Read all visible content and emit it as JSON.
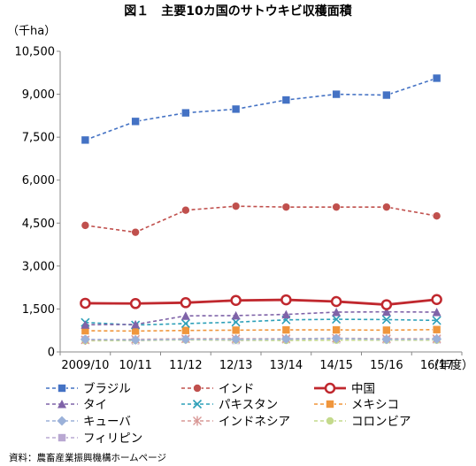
{
  "chart_data": {
    "type": "line",
    "title": "図１　主要10カ国のサトウキビ収穫面積",
    "unit_label": "（千ha）",
    "x_axis_suffix": "（年度）",
    "source_note": "資料：農畜産業振興機構ホームページ",
    "categories": [
      "2009/10",
      "10/11",
      "11/12",
      "12/13",
      "13/14",
      "14/15",
      "15/16",
      "16/17"
    ],
    "y_ticks": [
      "0",
      "1,500",
      "3,000",
      "4,500",
      "6,000",
      "7,500",
      "9,000",
      "10,500"
    ],
    "ylim": [
      0,
      10500
    ],
    "grid": false,
    "legend_position": "bottom",
    "series": [
      {
        "name": "ブラジル",
        "color": "#4472C4",
        "dash": true,
        "marker": "square",
        "values": [
          7400,
          8050,
          8350,
          8480,
          8800,
          9000,
          8970,
          9560
        ]
      },
      {
        "name": "インド",
        "color": "#C0504D",
        "dash": true,
        "marker": "circle",
        "values": [
          4420,
          4180,
          4950,
          5090,
          5060,
          5060,
          5060,
          4750
        ]
      },
      {
        "name": "中国",
        "color": "#C0282E",
        "dash": false,
        "marker": "circle-open",
        "values": [
          1700,
          1690,
          1720,
          1800,
          1820,
          1760,
          1650,
          1830
        ]
      },
      {
        "name": "タイ",
        "color": "#7F63A8",
        "dash": true,
        "marker": "triangle",
        "values": [
          950,
          960,
          1260,
          1270,
          1310,
          1390,
          1400,
          1390
        ]
      },
      {
        "name": "パキスタン",
        "color": "#2DA0B8",
        "dash": true,
        "marker": "x",
        "values": [
          1030,
          940,
          990,
          1040,
          1120,
          1140,
          1130,
          1100
        ]
      },
      {
        "name": "メキシコ",
        "color": "#F0963C",
        "dash": true,
        "marker": "square",
        "values": [
          740,
          730,
          750,
          760,
          770,
          770,
          760,
          780
        ]
      },
      {
        "name": "キューバ",
        "color": "#9BB1D9",
        "dash": true,
        "marker": "diamond",
        "values": [
          440,
          420,
          440,
          440,
          450,
          470,
          440,
          450
        ]
      },
      {
        "name": "インドネシア",
        "color": "#D99896",
        "dash": true,
        "marker": "asterisk",
        "values": [
          420,
          440,
          460,
          460,
          460,
          480,
          460,
          460
        ]
      },
      {
        "name": "コロンビア",
        "color": "#C4DA8C",
        "dash": true,
        "marker": "circle",
        "values": [
          390,
          400,
          420,
          410,
          400,
          410,
          410,
          410
        ]
      },
      {
        "name": "フィリピン",
        "color": "#B9A8D2",
        "dash": true,
        "marker": "square",
        "values": [
          420,
          390,
          440,
          400,
          420,
          420,
          420,
          420
        ]
      }
    ]
  }
}
